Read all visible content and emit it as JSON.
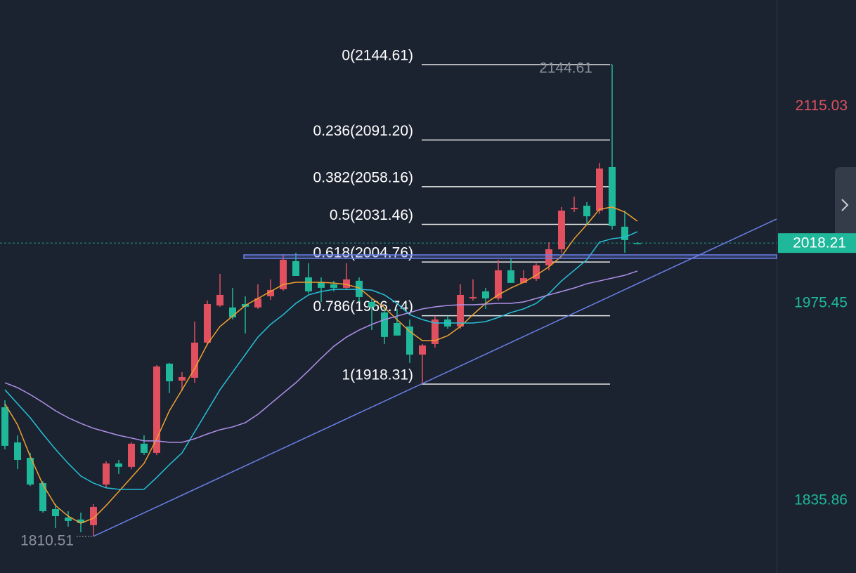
{
  "chart_data": {
    "type": "candlestick",
    "ylim": [
      1784.52,
      2190.37
    ],
    "yticks": [
      2115.03,
      1975.45,
      1835.86
    ],
    "ytick_colors": [
      "#e0505e",
      "#1fb89a",
      "#1fb89a"
    ],
    "up_color": "#e0505e",
    "down_color": "#1fb89a",
    "candles": {
      "open": [
        1901.9,
        1877.0,
        1866.1,
        1848.2,
        1829.8,
        1823.8,
        1822.4,
        1818.4,
        1847.2,
        1862.1,
        1859.7,
        1876.1,
        1869.6,
        1932.8,
        1920.8,
        1922.8,
        1947.7,
        1974.0,
        1972.6,
        1975.0,
        1972.6,
        1980.5,
        1985.5,
        2005.4,
        1993.9,
        1990.5,
        1989.0,
        1986.5,
        1991.5,
        1976.5,
        1969.1,
        1961.6,
        1959.1,
        1939.2,
        1946.7,
        1964.1,
        1959.1,
        1979.0,
        1984.0,
        1979.0,
        1998.9,
        1990.0,
        1992.9,
        2002.4,
        2013.8,
        2042.2,
        2044.7,
        2041.2,
        2072.0,
        2029.8,
        2018.21
      ],
      "high": [
        1906.9,
        1882.0,
        1869.6,
        1849.7,
        1833.3,
        1828.3,
        1827.3,
        1833.3,
        1863.6,
        1864.6,
        1877.0,
        1882.0,
        1931.8,
        1933.3,
        1926.8,
        1962.6,
        1977.5,
        1996.4,
        1986.5,
        1980.5,
        1989.0,
        1992.5,
        2010.4,
        2011.4,
        2003.9,
        1993.9,
        1991.5,
        2003.9,
        1993.9,
        1979.0,
        1972.5,
        1971.6,
        1964.1,
        1946.7,
        1966.6,
        1966.6,
        1989.0,
        1992.5,
        1986.5,
        2006.4,
        2007.4,
        1998.9,
        2003.9,
        2018.8,
        2043.7,
        2051.1,
        2047.2,
        2075.0,
        2144.61,
        2041.2,
        2018.8
      ],
      "low": [
        1872.1,
        1858.1,
        1846.2,
        1827.3,
        1816.4,
        1817.4,
        1813.4,
        1810.51,
        1844.7,
        1854.7,
        1858.1,
        1868.1,
        1868.1,
        1911.9,
        1913.4,
        1919.3,
        1945.7,
        1973.1,
        1964.1,
        1954.2,
        1971.6,
        1978.0,
        1984.5,
        1994.9,
        1982.5,
        1976.5,
        1984.0,
        1985.5,
        1976.5,
        1956.6,
        1946.7,
        1952.7,
        1933.3,
        1918.31,
        1944.2,
        1957.6,
        1957.6,
        1977.5,
        1971.6,
        1977.5,
        1990.0,
        1990.0,
        1991.4,
        1998.9,
        2011.4,
        2040.2,
        2031.2,
        2038.7,
        2027.8,
        2011.4,
        2017.8
      ],
      "close": [
        1874.6,
        1864.6,
        1847.2,
        1828.3,
        1824.8,
        1821.4,
        1819.9,
        1831.3,
        1862.1,
        1859.7,
        1876.1,
        1869.6,
        1930.8,
        1920.3,
        1923.3,
        1947.7,
        1975.0,
        1981.5,
        1965.6,
        1973.1,
        1979.0,
        1985.0,
        2006.4,
        1994.9,
        1984.0,
        1986.5,
        1986.5,
        1992.5,
        1980.0,
        1973.1,
        1951.7,
        1952.7,
        1939.2,
        1945.7,
        1964.1,
        1959.1,
        1981.5,
        1980.0,
        1979.0,
        1998.9,
        1990.0,
        1993.4,
        2002.4,
        2013.8,
        2041.2,
        2043.2,
        2037.2,
        2071.0,
        2030.3,
        2020.3,
        2018.21
      ]
    },
    "moving_averages": [
      {
        "color": "#f0a030",
        "values": [
          1904.4,
          1889.5,
          1867.1,
          1847.2,
          1832.3,
          1824.8,
          1819.8,
          1823.3,
          1832.3,
          1842.2,
          1852.2,
          1862.2,
          1879.6,
          1899.4,
          1914.3,
          1929.3,
          1946.6,
          1959.1,
          1966.5,
          1974.0,
          1979.0,
          1983.9,
          1988.9,
          1990.4,
          1990.4,
          1990.4,
          1989.9,
          1988.9,
          1986.4,
          1979.0,
          1972.5,
          1964.0,
          1955.6,
          1949.1,
          1949.1,
          1952.6,
          1959.1,
          1967.5,
          1975.5,
          1981.5,
          1986.4,
          1990.4,
          1995.4,
          2001.4,
          2008.9,
          2021.3,
          2031.3,
          2042.2,
          2043.7,
          2040.2,
          2033.7
        ]
      },
      {
        "color": "#26c0d8",
        "values": [
          1914.3,
          1904.4,
          1894.5,
          1883.0,
          1872.1,
          1862.2,
          1853.2,
          1848.2,
          1844.8,
          1843.8,
          1843.8,
          1843.8,
          1852.2,
          1861.2,
          1869.6,
          1884.5,
          1899.4,
          1914.3,
          1926.8,
          1939.2,
          1951.6,
          1960.6,
          1967.5,
          1975.5,
          1981.5,
          1983.9,
          1985.4,
          1985.4,
          1985.4,
          1984.9,
          1981.5,
          1975.5,
          1967.5,
          1964.0,
          1961.6,
          1961.6,
          1961.6,
          1961.6,
          1962.6,
          1965.5,
          1969.0,
          1971.6,
          1975.5,
          1982.4,
          1991.4,
          1998.9,
          2006.4,
          2018.8,
          2021.3,
          2022.3,
          2026.3
        ]
      },
      {
        "color": "#b090e8",
        "values": [
          1919.3,
          1915.8,
          1910.9,
          1905.4,
          1899.4,
          1894.5,
          1890.5,
          1887.0,
          1884.5,
          1882.0,
          1880.1,
          1878.1,
          1878.1,
          1877.1,
          1877.1,
          1879.6,
          1883.0,
          1886.0,
          1888.0,
          1891.0,
          1896.9,
          1904.4,
          1911.9,
          1919.3,
          1927.8,
          1936.7,
          1945.1,
          1951.6,
          1956.6,
          1960.6,
          1964.0,
          1966.5,
          1969.0,
          1971.6,
          1973.0,
          1974.0,
          1974.5,
          1974.5,
          1975.0,
          1975.5,
          1975.5,
          1976.5,
          1979.0,
          1981.5,
          1983.9,
          1986.4,
          1989.4,
          1991.4,
          1993.4,
          1995.4,
          1998.4
        ]
      }
    ],
    "fibonacci": {
      "start_index": 33,
      "end_index": 48,
      "color": "#e8e8e8",
      "levels": [
        {
          "value": 2144.61,
          "label": "0(2144.61)"
        },
        {
          "value": 2091.2,
          "label": "0.236(2091.20)"
        },
        {
          "value": 2058.16,
          "label": "0.382(2058.16)"
        },
        {
          "value": 2031.46,
          "label": "0.5(2031.46)"
        },
        {
          "value": 2004.76,
          "label": "0.618(2004.76)"
        },
        {
          "value": 1966.74,
          "label": "0.786(1966.74)"
        },
        {
          "value": 1918.31,
          "label": "1(1918.31)"
        }
      ]
    },
    "trendline": {
      "color": "#6b7fe8",
      "x": [
        7,
        61
      ],
      "y": [
        1810.51,
        2035.2
      ]
    },
    "support_line": {
      "color": "#6b7fe8",
      "value": 2008.6,
      "start_index": 19
    },
    "current_price_color": "#1fb89a"
  }
}
